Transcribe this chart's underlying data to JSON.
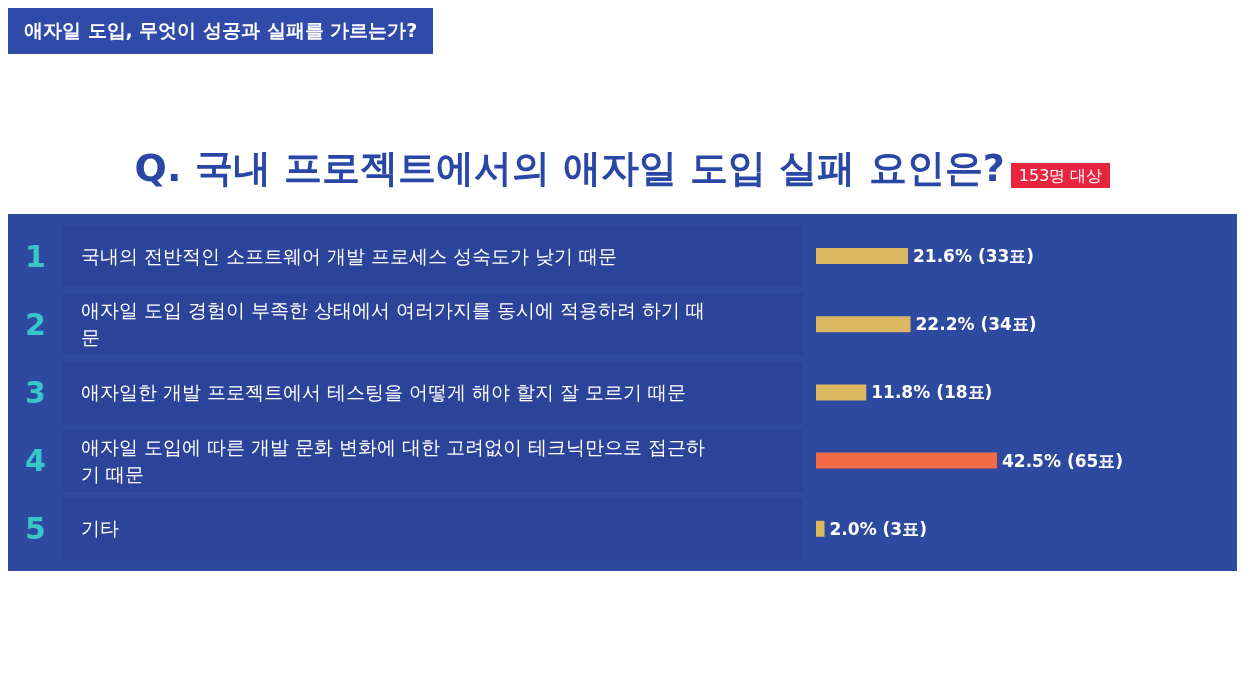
{
  "chart_data": {
    "type": "bar",
    "orientation": "horizontal",
    "title": "Q. 국내 프로젝트에서의 애자일 도입 실패 요인은?",
    "subtitle": "153명 대상",
    "categories": [
      "국내의 전반적인 소프트웨어 개발 프로세스 성숙도가 낮기 때문",
      "애자일 도입 경험이 부족한 상태에서 여러가지를 동시에 적용하려 하기 때문",
      "애자일한 개발 프로젝트에서 테스팅을 어떻게 해야 할지 잘 모르기 때문",
      "애자일 도입에 따른 개발 문화 변화에 대한 고려없이 테크닉만으로 접근하기 때문",
      "기타"
    ],
    "values": [
      21.6,
      22.2,
      11.8,
      42.5,
      2.0
    ],
    "colors": [
      "#dcb862",
      "#dcb862",
      "#dcb862",
      "#f26b45",
      "#dcb862"
    ],
    "value_labels": [
      "21.6% (33표)",
      "22.2% (34표)",
      "11.8% (18표)",
      "42.5% (65표)",
      "2.0% (3표)"
    ],
    "annotations": [
      "애자일 도입, 무엇이 성공과 실패를 가르는가?",
      "1",
      "2",
      "3",
      "4",
      "5"
    ]
  }
}
